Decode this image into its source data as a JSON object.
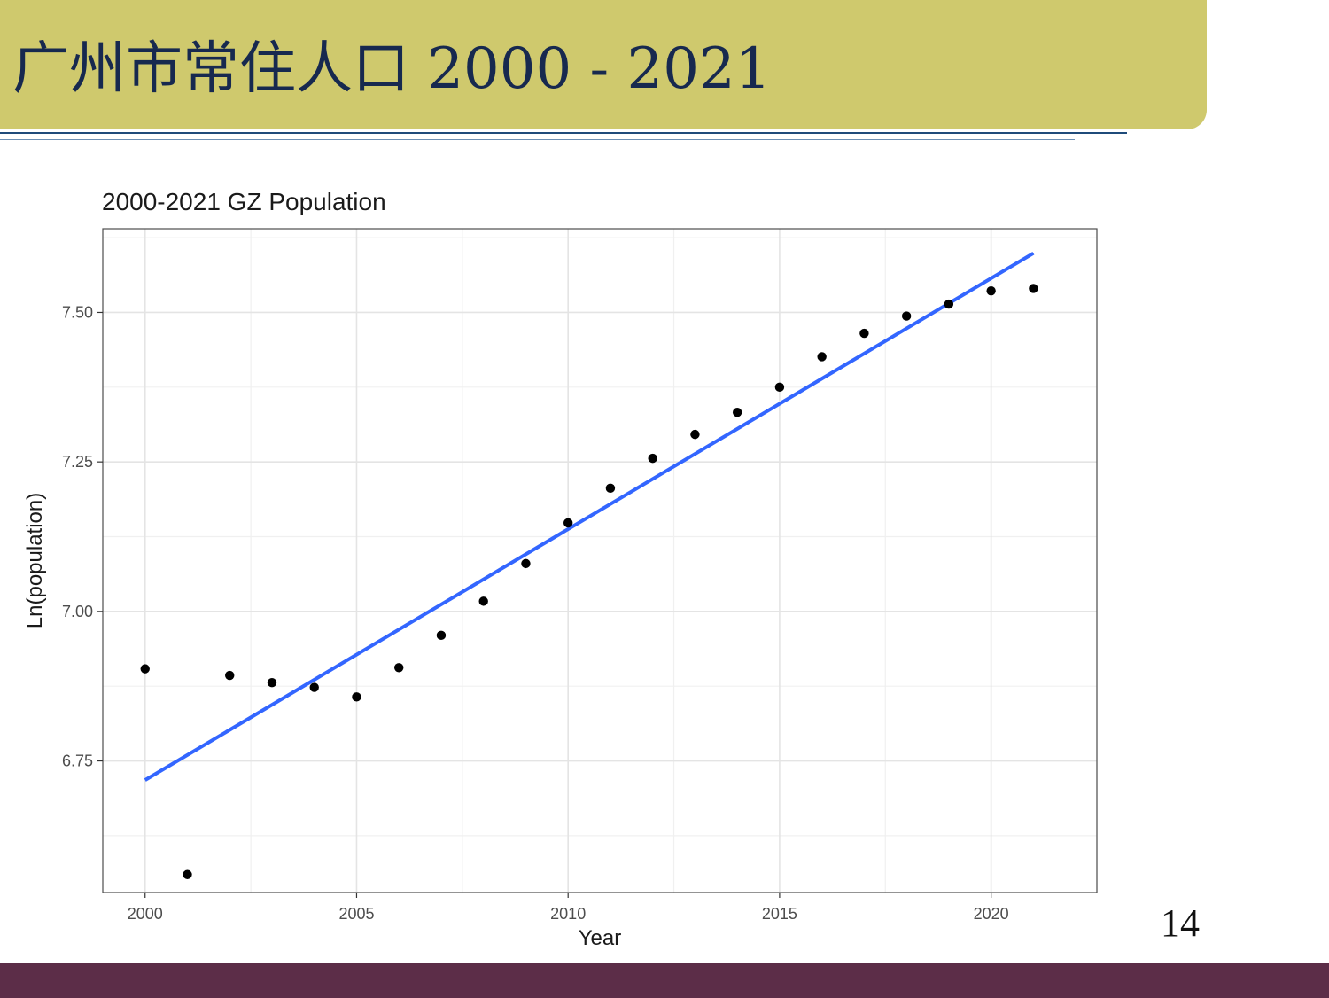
{
  "slide": {
    "title": "广州市常住人口 2000 - 2021",
    "page_number": "14",
    "colors": {
      "banner": "#cfc96d",
      "title_text": "#17294f",
      "footer": "#5c2d48",
      "rule": "#1f4b7a"
    }
  },
  "chart_data": {
    "type": "scatter",
    "title": "2000-2021 GZ Population",
    "xlabel": "Year",
    "ylabel": "Ln(population)",
    "xlim": [
      1999,
      2022.5
    ],
    "ylim": [
      6.53,
      7.64
    ],
    "x_ticks": [
      2000,
      2005,
      2010,
      2015,
      2020
    ],
    "y_ticks": [
      6.75,
      7.0,
      7.25,
      7.5
    ],
    "x_tick_labels": [
      "2000",
      "2005",
      "2010",
      "2015",
      "2020"
    ],
    "y_tick_labels": [
      "6.75",
      "7.00",
      "7.25",
      "7.50"
    ],
    "grid": true,
    "points": {
      "x": [
        2000,
        2001,
        2002,
        2003,
        2004,
        2005,
        2006,
        2007,
        2008,
        2009,
        2010,
        2011,
        2012,
        2013,
        2014,
        2015,
        2016,
        2017,
        2018,
        2019,
        2020,
        2021
      ],
      "y": [
        6.904,
        6.56,
        6.893,
        6.881,
        6.873,
        6.857,
        6.906,
        6.96,
        7.017,
        7.08,
        7.148,
        7.206,
        7.256,
        7.296,
        7.333,
        7.375,
        7.426,
        7.465,
        7.494,
        7.514,
        7.536,
        7.54
      ]
    },
    "trend_line": {
      "x": [
        2000,
        2021
      ],
      "y": [
        6.718,
        7.599
      ],
      "color": "#3366ff"
    },
    "point_color": "#000000"
  }
}
